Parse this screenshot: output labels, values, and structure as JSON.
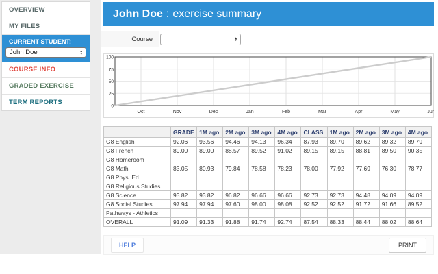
{
  "colors": {
    "accent_blue": "#2e90d5",
    "course_info_red": "#e0453c",
    "graded_exercise_green": "#55795e",
    "term_reports_teal": "#1b6d7e",
    "help_link_blue": "#4b7bdc",
    "table_header_navy": "#2f4170",
    "chart_line_gray": "#cccccc"
  },
  "sidebar": {
    "overview": "OVERVIEW",
    "my_files": "MY FILES",
    "current_student_label": "CURRENT STUDENT:",
    "current_student_value": "John Doe",
    "course_info": "COURSE INFO",
    "graded_exercise": "GRADED EXERCISE",
    "term_reports": "TERM REPORTS"
  },
  "header": {
    "student_name": "John Doe",
    "separator": ":",
    "title": "exercise summary"
  },
  "course": {
    "label": "Course",
    "selected_value": ""
  },
  "chart_data": {
    "type": "line",
    "title": "",
    "xlabel": "",
    "ylabel": "",
    "x_labels": [
      "Oct",
      "Nov",
      "Dec",
      "Jan",
      "Feb",
      "Mar",
      "Apr",
      "May",
      "Jun"
    ],
    "y_ticks": [
      0,
      25,
      50,
      75,
      100
    ],
    "ylim": [
      0,
      100
    ],
    "grid": true,
    "legend": "none",
    "series": [
      {
        "name": "progress-line",
        "color": "#cccccc",
        "x_frac": [
          0,
          1
        ],
        "values": [
          0,
          100
        ]
      }
    ]
  },
  "table": {
    "columns": [
      "",
      "GRADE",
      "1M ago",
      "2M ago",
      "3M ago",
      "4M ago",
      "CLASS",
      "1M ago",
      "2M ago",
      "3M ago",
      "4M ago"
    ],
    "rows": [
      {
        "label": "G8 English",
        "values": [
          "92.06",
          "93.56",
          "94.46",
          "94.13",
          "96.34",
          "87.93",
          "89.70",
          "89.62",
          "89.32",
          "89.79"
        ]
      },
      {
        "label": "G8 French",
        "values": [
          "89.00",
          "89.00",
          "88.57",
          "89.52",
          "91.02",
          "89.15",
          "89.15",
          "88.81",
          "89.50",
          "90.35"
        ]
      },
      {
        "label": "G8 Homeroom",
        "values": [
          "",
          "",
          "",
          "",
          "",
          "",
          "",
          "",
          "",
          ""
        ]
      },
      {
        "label": "G8 Math",
        "values": [
          "83.05",
          "80.93",
          "79.84",
          "78.58",
          "78.23",
          "78.00",
          "77.92",
          "77.69",
          "76.30",
          "78.77"
        ]
      },
      {
        "label": "G8 Phys. Ed.",
        "values": [
          "",
          "",
          "",
          "",
          "",
          "",
          "",
          "",
          "",
          ""
        ]
      },
      {
        "label": "G8 Religious Studies",
        "values": [
          "",
          "",
          "",
          "",
          "",
          "",
          "",
          "",
          "",
          ""
        ]
      },
      {
        "label": "G8 Science",
        "values": [
          "93.82",
          "93.82",
          "96.82",
          "96.66",
          "96.66",
          "92.73",
          "92.73",
          "94.48",
          "94.09",
          "94.09"
        ]
      },
      {
        "label": "G8 Social Studies",
        "values": [
          "97.94",
          "97.94",
          "97.60",
          "98.00",
          "98.08",
          "92.52",
          "92.52",
          "91.72",
          "91.66",
          "89.52"
        ]
      },
      {
        "label": "Pathways - Athletics",
        "values": [
          "",
          "",
          "",
          "",
          "",
          "",
          "",
          "",
          "",
          ""
        ]
      },
      {
        "label": "OVERALL",
        "values": [
          "91.09",
          "91.33",
          "91.88",
          "91.74",
          "92.74",
          "87.54",
          "88.33",
          "88.44",
          "88.02",
          "88.64"
        ]
      }
    ]
  },
  "footer": {
    "help_label": "HELP",
    "print_label": "PRINT"
  }
}
